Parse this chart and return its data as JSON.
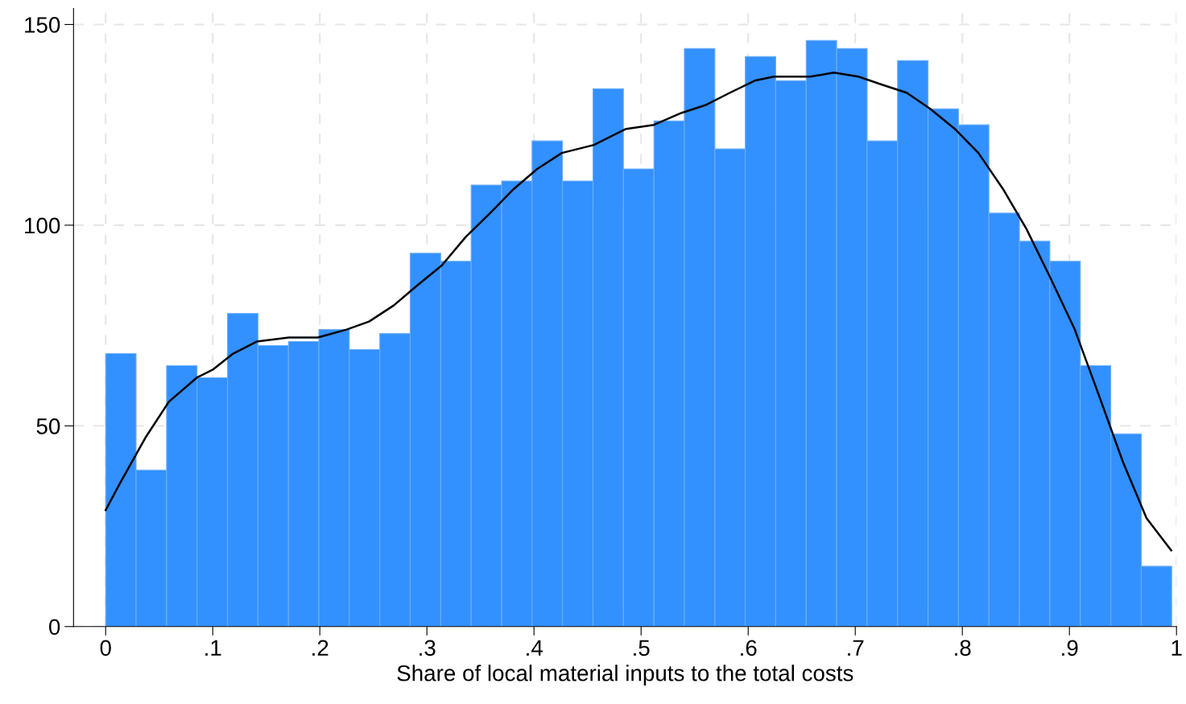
{
  "chart_data": {
    "type": "histogram",
    "xlabel": "Share of local material inputs to the total costs",
    "bins": [
      0,
      0.0284,
      0.0569,
      0.0853,
      0.1138,
      0.1422,
      0.1707,
      0.1991,
      0.2275,
      0.256,
      0.2844,
      0.3129,
      0.3413,
      0.3698,
      0.3982,
      0.4266,
      0.4551,
      0.4835,
      0.512,
      0.5404,
      0.5689,
      0.5973,
      0.6257,
      0.6542,
      0.6826,
      0.7111,
      0.7395,
      0.768,
      0.7964,
      0.8248,
      0.8533,
      0.8817,
      0.9102,
      0.9386,
      0.9671,
      0.9955
    ],
    "series": [
      {
        "color": "#3390ff",
        "values": [
          68,
          39,
          65,
          62,
          78,
          70,
          71,
          74,
          69,
          73,
          93,
          91,
          110,
          111,
          121,
          111,
          134,
          114,
          126,
          144,
          119,
          142,
          136,
          146,
          144,
          121,
          141,
          129,
          125,
          103,
          96,
          91,
          65,
          48,
          15
        ]
      },
      {
        "type": "line",
        "color": "#000000",
        "x": [
          0,
          0.014,
          0.037,
          0.059,
          0.085,
          0.1,
          0.119,
          0.141,
          0.171,
          0.198,
          0.225,
          0.246,
          0.269,
          0.291,
          0.314,
          0.336,
          0.359,
          0.381,
          0.403,
          0.426,
          0.456,
          0.486,
          0.512,
          0.538,
          0.561,
          0.583,
          0.606,
          0.624,
          0.643,
          0.658,
          0.68,
          0.703,
          0.725,
          0.748,
          0.77,
          0.793,
          0.815,
          0.838,
          0.86,
          0.882,
          0.905,
          0.927,
          0.95,
          0.972,
          0.995
        ],
        "values": [
          29,
          36,
          47,
          56,
          62,
          64,
          68,
          71,
          72,
          72,
          74,
          76,
          80,
          85,
          90,
          97,
          103,
          109,
          114,
          118,
          120,
          124,
          125,
          128,
          130,
          133,
          136,
          137,
          137,
          137,
          138,
          137,
          135,
          133,
          129,
          124,
          118,
          109,
          99,
          87,
          74,
          58,
          41,
          27,
          19
        ]
      }
    ],
    "xlim": [
      -0.03,
      1
    ],
    "ylim": [
      0,
      154
    ],
    "xticks": [
      0,
      {
        "value": 0.1,
        "label": ".1"
      },
      {
        "value": 0.2,
        "label": ".2"
      },
      {
        "value": 0.3,
        "label": ".3"
      },
      {
        "value": 0.4,
        "label": ".4"
      },
      {
        "value": 0.5,
        "label": ".5"
      },
      {
        "value": 0.6,
        "label": ".6"
      },
      {
        "value": 0.7,
        "label": ".7"
      },
      {
        "value": 0.8,
        "label": ".8"
      },
      {
        "value": 0.9,
        "label": ".9"
      },
      1
    ],
    "yticks": [
      0,
      50,
      100,
      150
    ],
    "grid": true
  }
}
